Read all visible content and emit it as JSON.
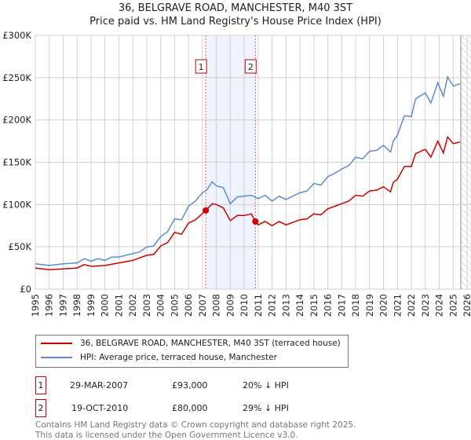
{
  "chart_data": {
    "type": "line",
    "title": "36, BELGRAVE ROAD, MANCHESTER, M40 3ST",
    "subtitle": "Price paid vs. HM Land Registry's House Price Index (HPI)",
    "xlim": [
      1995,
      2026
    ],
    "ylim": [
      0,
      300000
    ],
    "x_ticks": [
      "1995",
      "1996",
      "1997",
      "1998",
      "1999",
      "2000",
      "2001",
      "2002",
      "2003",
      "2004",
      "2005",
      "2006",
      "2007",
      "2008",
      "2009",
      "2010",
      "2011",
      "2012",
      "2013",
      "2014",
      "2015",
      "2016",
      "2017",
      "2018",
      "2019",
      "2020",
      "2021",
      "2022",
      "2023",
      "2024",
      "2025",
      "2026"
    ],
    "y_ticks": [
      {
        "v": 0,
        "label": "£0"
      },
      {
        "v": 50000,
        "label": "£50K"
      },
      {
        "v": 100000,
        "label": "£100K"
      },
      {
        "v": 150000,
        "label": "£150K"
      },
      {
        "v": 200000,
        "label": "£200K"
      },
      {
        "v": 250000,
        "label": "£250K"
      },
      {
        "v": 300000,
        "label": "£300K"
      }
    ],
    "grid": true,
    "shaded_range": [
      2007.24,
      2010.8
    ],
    "hatched_from": 2025.55,
    "series": [
      {
        "name": "36, BELGRAVE ROAD, MANCHESTER, M40 3ST (terraced house)",
        "color": "#cc0000",
        "x": [
          1995,
          1996,
          1997,
          1998,
          1998.5,
          1999,
          2000,
          2001,
          2002,
          2003,
          2003.5,
          2004,
          2004.5,
          2005,
          2005.5,
          2006,
          2006.5,
          2007.24,
          2007.7,
          2008,
          2008.5,
          2009,
          2009.5,
          2010,
          2010.5,
          2010.8,
          2011,
          2011.5,
          2012,
          2012.5,
          2013,
          2013.5,
          2014,
          2014.5,
          2015,
          2015.5,
          2016,
          2016.5,
          2017,
          2017.5,
          2018,
          2018.5,
          2019,
          2019.5,
          2020,
          2020.5,
          2020.7,
          2021,
          2021.5,
          2022,
          2022.3,
          2022.8,
          2023,
          2023.4,
          2023.9,
          2024.3,
          2024.6,
          2025,
          2025.5
        ],
        "values": [
          25000,
          23000,
          24000,
          25000,
          29000,
          27000,
          28000,
          31000,
          34000,
          40000,
          41000,
          51000,
          55000,
          67000,
          65000,
          78000,
          82000,
          93000,
          101000,
          100000,
          96000,
          81000,
          87000,
          87000,
          89000,
          80000,
          76000,
          80000,
          75000,
          80000,
          76000,
          79000,
          82000,
          83000,
          89000,
          88000,
          95000,
          98000,
          101000,
          104000,
          111000,
          110000,
          116000,
          117000,
          121000,
          115000,
          126000,
          130000,
          145000,
          145000,
          160000,
          164000,
          165000,
          156000,
          175000,
          161000,
          180000,
          172000,
          174000
        ]
      },
      {
        "name": "HPI: Average price, terraced house, Manchester",
        "color": "#5b8bd0",
        "x": [
          1995,
          1996,
          1997,
          1998,
          1998.5,
          1999,
          1999.5,
          2000,
          2000.5,
          2001,
          2001.5,
          2002,
          2002.5,
          2003,
          2003.5,
          2004,
          2004.5,
          2005,
          2005.5,
          2006,
          2006.5,
          2007,
          2007.3,
          2007.7,
          2008,
          2008.5,
          2009,
          2009.5,
          2010,
          2010.5,
          2011,
          2011.5,
          2012,
          2012.5,
          2013,
          2013.5,
          2014,
          2014.5,
          2015,
          2015.5,
          2016,
          2016.5,
          2017,
          2017.5,
          2018,
          2018.5,
          2019,
          2019.5,
          2020,
          2020.5,
          2020.7,
          2021,
          2021.5,
          2022,
          2022.3,
          2022.8,
          2023,
          2023.4,
          2023.9,
          2024.3,
          2024.6,
          2025,
          2025.5
        ],
        "values": [
          30000,
          28000,
          30000,
          31000,
          36000,
          33000,
          36000,
          34000,
          38000,
          38000,
          40000,
          42000,
          44000,
          50000,
          51000,
          62000,
          68000,
          83000,
          82000,
          98000,
          104000,
          114000,
          117000,
          127000,
          122000,
          120000,
          101000,
          109000,
          110000,
          111000,
          107000,
          111000,
          104000,
          110000,
          106000,
          110000,
          114000,
          116000,
          125000,
          123000,
          133000,
          137000,
          142000,
          146000,
          156000,
          154000,
          163000,
          164000,
          170000,
          162000,
          175000,
          182000,
          205000,
          204000,
          225000,
          230000,
          232000,
          220000,
          244000,
          228000,
          251000,
          240000,
          243000
        ]
      }
    ],
    "sales": [
      {
        "label": "1",
        "x": 2007.24,
        "value": 93000,
        "date": "29-MAR-2007",
        "price": "£93,000",
        "hpi": "20% ↓ HPI"
      },
      {
        "label": "2",
        "x": 2010.8,
        "value": 80000,
        "date": "19-OCT-2010",
        "price": "£80,000",
        "hpi": "29% ↓ HPI"
      }
    ]
  },
  "legend": {
    "red_label": "36, BELGRAVE ROAD, MANCHESTER, M40 3ST (terraced house)",
    "blue_label": "HPI: Average price, terraced house, Manchester"
  },
  "footer": {
    "line1": "Contains HM Land Registry data © Crown copyright and database right 2025.",
    "line2": "This data is licensed under the Open Government Licence v3.0."
  }
}
